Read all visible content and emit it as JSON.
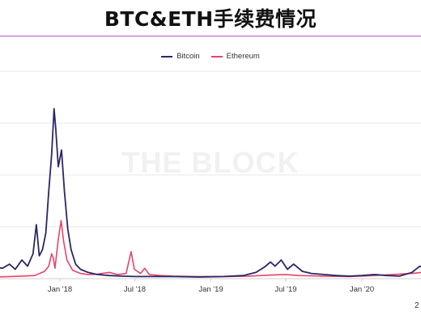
{
  "title": "BTC&ETH手续费情况",
  "watermark": "THE BLOCK",
  "corner_mark": "2",
  "colors": {
    "bitcoin": "#2a2766",
    "ethereum": "#e8446a",
    "title_rule": "#c24bd8",
    "grid": "#e8e8e8"
  },
  "chart_data": {
    "type": "line",
    "x_ticks": [
      "Jan '18",
      "Jul '18",
      "Jan '19",
      "Jul '19",
      "Jan '20"
    ],
    "legend": "top-center",
    "grid": true,
    "series": [
      {
        "name": "Bitcoin",
        "color": "#2a2766",
        "values": [
          [
            "2017-06-01",
            0.6
          ],
          [
            "2017-06-10",
            0.85
          ],
          [
            "2017-06-20",
            0.4
          ],
          [
            "2017-07-01",
            0.3
          ],
          [
            "2017-07-15",
            0.35
          ],
          [
            "2017-08-01",
            0.55
          ],
          [
            "2017-08-15",
            0.5
          ],
          [
            "2017-09-01",
            0.7
          ],
          [
            "2017-09-15",
            0.45
          ],
          [
            "2017-10-01",
            0.9
          ],
          [
            "2017-10-15",
            0.6
          ],
          [
            "2017-10-28",
            1.2
          ],
          [
            "2017-11-05",
            2.6
          ],
          [
            "2017-11-12",
            1.1
          ],
          [
            "2017-11-20",
            1.4
          ],
          [
            "2017-11-28",
            2.2
          ],
          [
            "2017-12-05",
            4.2
          ],
          [
            "2017-12-12",
            6.0
          ],
          [
            "2017-12-18",
            8.2
          ],
          [
            "2017-12-22",
            7.2
          ],
          [
            "2017-12-28",
            5.4
          ],
          [
            "2018-01-05",
            6.2
          ],
          [
            "2018-01-12",
            4.2
          ],
          [
            "2018-01-20",
            2.4
          ],
          [
            "2018-01-28",
            1.4
          ],
          [
            "2018-02-08",
            0.7
          ],
          [
            "2018-02-20",
            0.45
          ],
          [
            "2018-03-10",
            0.3
          ],
          [
            "2018-04-01",
            0.2
          ],
          [
            "2018-05-01",
            0.15
          ],
          [
            "2018-06-01",
            0.12
          ],
          [
            "2018-07-01",
            0.1
          ],
          [
            "2018-08-01",
            0.1
          ],
          [
            "2018-10-01",
            0.1
          ],
          [
            "2018-12-01",
            0.08
          ],
          [
            "2019-02-01",
            0.1
          ],
          [
            "2019-03-20",
            0.15
          ],
          [
            "2019-04-20",
            0.3
          ],
          [
            "2019-05-10",
            0.55
          ],
          [
            "2019-05-25",
            0.8
          ],
          [
            "2019-06-05",
            0.6
          ],
          [
            "2019-06-20",
            0.9
          ],
          [
            "2019-07-05",
            0.45
          ],
          [
            "2019-07-20",
            0.7
          ],
          [
            "2019-08-10",
            0.35
          ],
          [
            "2019-09-01",
            0.25
          ],
          [
            "2019-10-01",
            0.2
          ],
          [
            "2019-11-01",
            0.15
          ],
          [
            "2019-12-01",
            0.12
          ],
          [
            "2020-01-01",
            0.15
          ],
          [
            "2020-02-01",
            0.2
          ],
          [
            "2020-03-01",
            0.15
          ],
          [
            "2020-04-01",
            0.12
          ],
          [
            "2020-05-01",
            0.3
          ],
          [
            "2020-05-20",
            0.6
          ],
          [
            "2020-06-05",
            0.45
          ],
          [
            "2020-06-20",
            0.7
          ]
        ]
      },
      {
        "name": "Ethereum",
        "color": "#e8446a",
        "values": [
          [
            "2017-06-01",
            0.08
          ],
          [
            "2017-07-01",
            0.1
          ],
          [
            "2017-08-01",
            0.08
          ],
          [
            "2017-09-01",
            0.1
          ],
          [
            "2017-10-01",
            0.12
          ],
          [
            "2017-11-01",
            0.15
          ],
          [
            "2017-11-25",
            0.35
          ],
          [
            "2017-12-05",
            0.6
          ],
          [
            "2017-12-12",
            1.2
          ],
          [
            "2017-12-16",
            1.0
          ],
          [
            "2017-12-20",
            0.5
          ],
          [
            "2017-12-28",
            1.9
          ],
          [
            "2018-01-04",
            2.8
          ],
          [
            "2018-01-10",
            1.8
          ],
          [
            "2018-01-18",
            0.9
          ],
          [
            "2018-02-01",
            0.4
          ],
          [
            "2018-02-20",
            0.25
          ],
          [
            "2018-03-10",
            0.2
          ],
          [
            "2018-04-01",
            0.22
          ],
          [
            "2018-05-01",
            0.3
          ],
          [
            "2018-05-20",
            0.2
          ],
          [
            "2018-06-10",
            0.25
          ],
          [
            "2018-06-22",
            1.3
          ],
          [
            "2018-06-30",
            0.45
          ],
          [
            "2018-07-15",
            0.25
          ],
          [
            "2018-07-25",
            0.5
          ],
          [
            "2018-08-05",
            0.2
          ],
          [
            "2018-09-01",
            0.15
          ],
          [
            "2018-10-01",
            0.12
          ],
          [
            "2018-12-01",
            0.1
          ],
          [
            "2019-02-01",
            0.1
          ],
          [
            "2019-04-01",
            0.12
          ],
          [
            "2019-06-01",
            0.18
          ],
          [
            "2019-07-01",
            0.2
          ],
          [
            "2019-08-01",
            0.15
          ],
          [
            "2019-10-01",
            0.12
          ],
          [
            "2019-12-01",
            0.1
          ],
          [
            "2020-02-01",
            0.15
          ],
          [
            "2020-03-15",
            0.2
          ],
          [
            "2020-05-01",
            0.25
          ],
          [
            "2020-06-20",
            0.35
          ]
        ]
      }
    ],
    "ylim": [
      0,
      10
    ]
  }
}
